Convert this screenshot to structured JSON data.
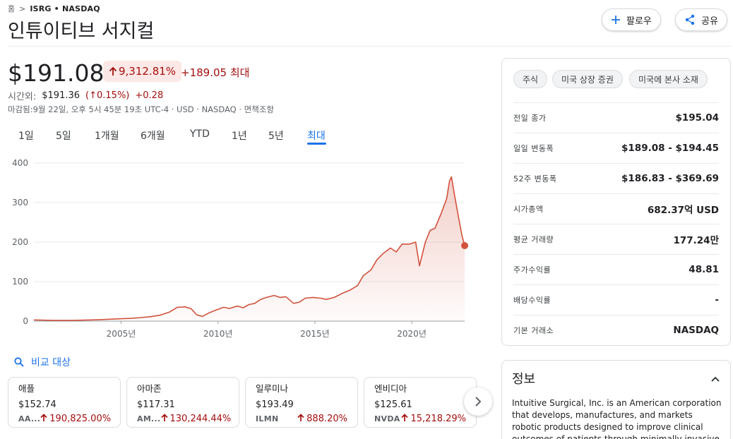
{
  "breadcrumb": {
    "home": "홈",
    "sep": ">",
    "ticker": "ISRG • NASDAQ"
  },
  "title": "인튜이티브 서지컬",
  "buttons": {
    "follow": "팔로우",
    "share": "공유"
  },
  "quote": {
    "price": "$191.08",
    "pct_change": "9,312.81%",
    "abs_change": "+189.05 최대",
    "after_hours_label": "시간외:",
    "after_hours_price": "$191.36",
    "after_hours_pct": "(↑0.15%)",
    "after_hours_abs": "+0.28",
    "closed_note": "마감됨:9월 22일, 오후 5시 45분 19초 UTC-4 · USD · NASDAQ · 면책조항"
  },
  "tabs": [
    "1일",
    "5일",
    "1개월",
    "6개월",
    "YTD",
    "1년",
    "5년",
    "최대"
  ],
  "active_tab": "최대",
  "chart_data": {
    "type": "area",
    "title": "",
    "xlabel": "",
    "ylabel": "",
    "ylim": [
      0,
      400
    ],
    "yticks": [
      "0",
      "100",
      "200",
      "300",
      "400"
    ],
    "xticks": [
      "2005년",
      "2010년",
      "2015년",
      "2020년"
    ],
    "xtick_years": [
      2005,
      2010,
      2015,
      2020
    ],
    "xlim": [
      2000.5,
      2022.73
    ],
    "grid": true,
    "line_color": "#d2523d",
    "series": [
      {
        "x": [
          2000.5,
          2001.5,
          2002.5,
          2003.5,
          2004.0,
          2004.5,
          2005.0,
          2005.5,
          2006.0,
          2006.5,
          2007.0,
          2007.5,
          2007.9,
          2008.3,
          2008.6,
          2008.9,
          2009.2,
          2009.5,
          2009.9,
          2010.3,
          2010.6,
          2011.0,
          2011.3,
          2011.6,
          2011.9,
          2012.2,
          2012.5,
          2012.9,
          2013.2,
          2013.5,
          2013.9,
          2014.2,
          2014.5,
          2014.9,
          2015.3,
          2015.6,
          2016.0,
          2016.4,
          2016.8,
          2017.2,
          2017.5,
          2017.9,
          2018.2,
          2018.5,
          2018.9,
          2019.2,
          2019.5,
          2019.9,
          2020.2,
          2020.4,
          2020.7,
          2020.95,
          2021.2,
          2021.5,
          2021.8,
          2021.95,
          2022.05,
          2022.2,
          2022.35,
          2022.5,
          2022.6,
          2022.73
        ],
        "values": [
          3,
          2,
          2,
          3,
          4,
          5,
          6,
          7,
          9,
          11,
          15,
          23,
          35,
          36,
          32,
          16,
          12,
          20,
          28,
          35,
          32,
          38,
          34,
          42,
          45,
          55,
          60,
          65,
          60,
          62,
          45,
          48,
          58,
          60,
          58,
          55,
          60,
          70,
          78,
          90,
          115,
          130,
          155,
          170,
          185,
          175,
          195,
          195,
          200,
          140,
          200,
          230,
          235,
          270,
          310,
          355,
          365,
          320,
          280,
          240,
          215,
          191
        ]
      }
    ],
    "last_point": {
      "x": 2022.73,
      "y": 191.08
    }
  },
  "compare": {
    "link_label": "비교 대상",
    "cards": [
      {
        "name": "애플",
        "price": "$152.74",
        "ticker": "AA...",
        "change": "190,825.00%"
      },
      {
        "name": "아마존",
        "price": "$117.31",
        "ticker": "AM...",
        "change": "130,244.44%"
      },
      {
        "name": "일루미나",
        "price": "$193.49",
        "ticker": "ILMN",
        "change": "888.20%"
      },
      {
        "name": "엔비디아",
        "price": "$125.61",
        "ticker": "NVDA",
        "change": "15,218.29%"
      }
    ]
  },
  "side": {
    "chips": [
      "주식",
      "미국 상장 증권",
      "미국에 본사 소재"
    ],
    "stats": [
      {
        "label": "전일 종가",
        "value": "$195.04"
      },
      {
        "label": "일일 변동폭",
        "value": "$189.08 - $194.45"
      },
      {
        "label": "52주 변동폭",
        "value": "$186.83 - $369.69"
      },
      {
        "label": "시가총액",
        "value": "682.37억 USD"
      },
      {
        "label": "평균 거래량",
        "value": "177.24만"
      },
      {
        "label": "주가수익률",
        "value": "48.81"
      },
      {
        "label": "배당수익률",
        "value": "-"
      },
      {
        "label": "기본 거래소",
        "value": "NASDAQ"
      }
    ]
  },
  "about": {
    "title": "정보",
    "text": "Intuitive Surgical, Inc. is an American corporation that develops, manufactures, and markets robotic products designed to improve clinical outcomes of patients through minimally invasive surgery, most"
  },
  "colors": {
    "accent": "#1a73e8",
    "up": "#a50e0e",
    "up_bg": "#fce8e6",
    "line": "#d2523d"
  }
}
